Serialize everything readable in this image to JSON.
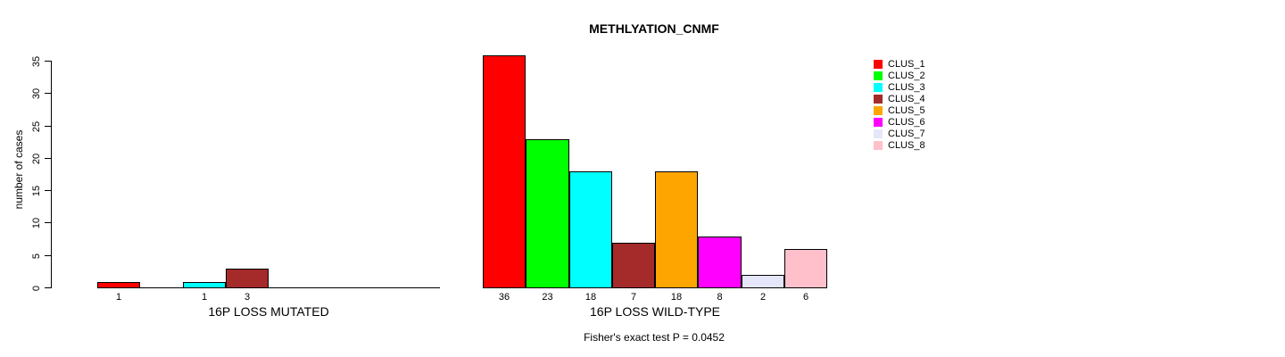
{
  "page": {
    "background": "#ffffff"
  },
  "chart_data": {
    "type": "bar",
    "title": "METHLYATION_CNMF",
    "ylabel": "number of cases",
    "ylim": [
      0,
      35
    ],
    "yticks": [
      0,
      5,
      10,
      15,
      20,
      25,
      30,
      35
    ],
    "grid": false,
    "panels": [
      {
        "xlabel": "16P LOSS MUTATED",
        "values": [
          1,
          0,
          1,
          3,
          0,
          0,
          0,
          0
        ],
        "bar_labels": [
          "1",
          "",
          "1",
          "3",
          "",
          "",
          "",
          ""
        ]
      },
      {
        "xlabel": "16P LOSS WILD-TYPE",
        "values": [
          36,
          23,
          18,
          7,
          18,
          8,
          2,
          6
        ],
        "bar_labels": [
          "36",
          "23",
          "18",
          "7",
          "18",
          "8",
          "2",
          "6"
        ]
      }
    ],
    "series_colors": [
      "#FF0000",
      "#00FF00",
      "#00FFFF",
      "#A52A2A",
      "#FFA500",
      "#FF00FF",
      "#E6E6FA",
      "#FFC0CB"
    ],
    "legend": {
      "position": "right",
      "entries": [
        {
          "label": "CLUS_1",
          "color": "#FF0000"
        },
        {
          "label": "CLUS_2",
          "color": "#00FF00"
        },
        {
          "label": "CLUS_3",
          "color": "#00FFFF"
        },
        {
          "label": "CLUS_4",
          "color": "#A52A2A"
        },
        {
          "label": "CLUS_5",
          "color": "#FFA500"
        },
        {
          "label": "CLUS_6",
          "color": "#FF00FF"
        },
        {
          "label": "CLUS_7",
          "color": "#E6E6FA"
        },
        {
          "label": "CLUS_8",
          "color": "#FFC0CB"
        }
      ]
    },
    "annotation": "Fisher's exact test P = 0.0452"
  }
}
